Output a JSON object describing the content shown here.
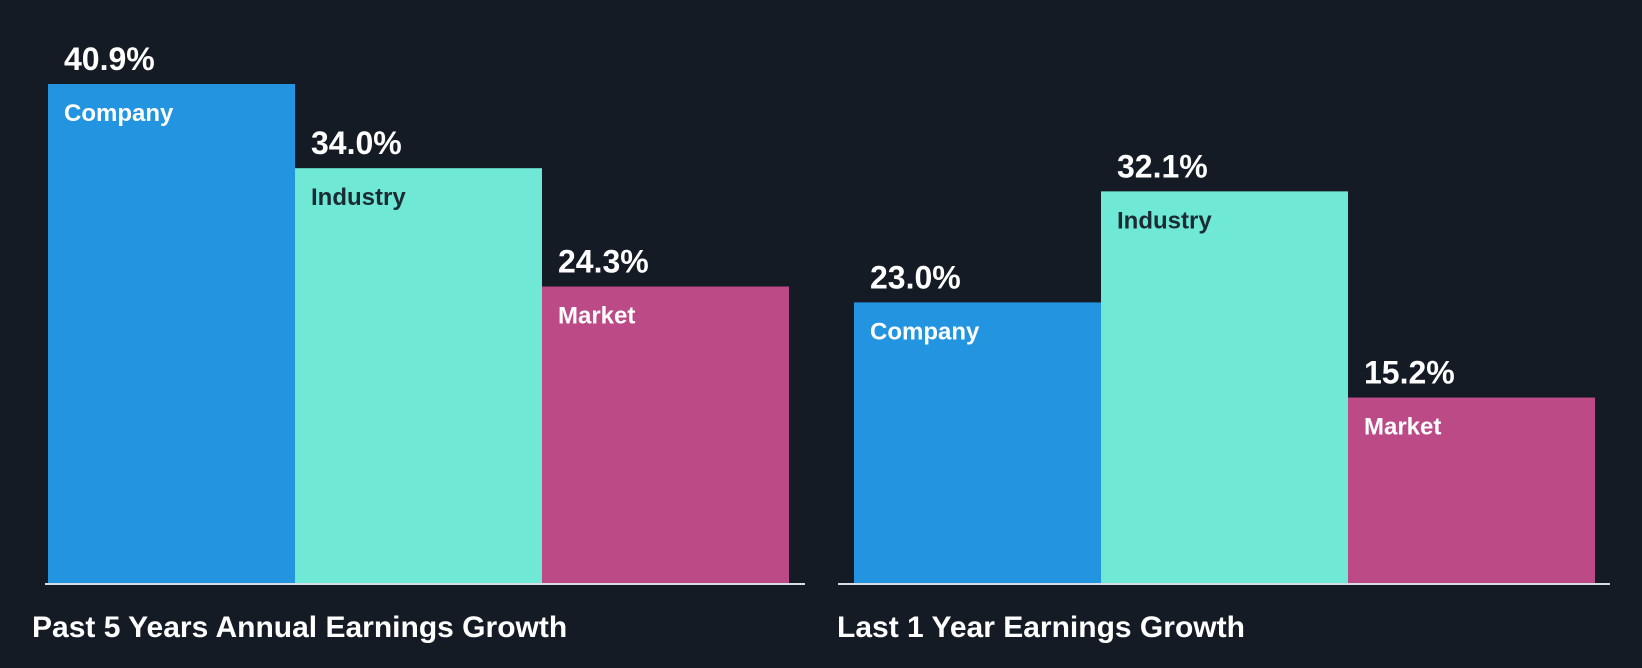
{
  "colors": {
    "background": "#151b24",
    "company": "#2394e0",
    "industry": "#70e8d6",
    "market": "#bb4a87",
    "baseline": "#d8dde3",
    "text_light": "#ffffff",
    "text_dark": "#1b2b33"
  },
  "chart_data": [
    {
      "type": "bar",
      "title": "Past 5 Years Annual Earnings Growth",
      "categories": [
        "Company",
        "Industry",
        "Market"
      ],
      "values": [
        40.9,
        34.0,
        24.3
      ],
      "value_labels": [
        "40.9%",
        "34.0%",
        "24.3%"
      ],
      "unit": "%",
      "ylim": [
        0,
        40.9
      ],
      "grid": false,
      "legend": "none"
    },
    {
      "type": "bar",
      "title": "Last 1 Year Earnings Growth",
      "categories": [
        "Company",
        "Industry",
        "Market"
      ],
      "values": [
        23.0,
        32.1,
        15.2
      ],
      "value_labels": [
        "23.0%",
        "32.1%",
        "15.2%"
      ],
      "unit": "%",
      "ylim": [
        0,
        40.9
      ],
      "grid": false,
      "legend": "none"
    }
  ]
}
